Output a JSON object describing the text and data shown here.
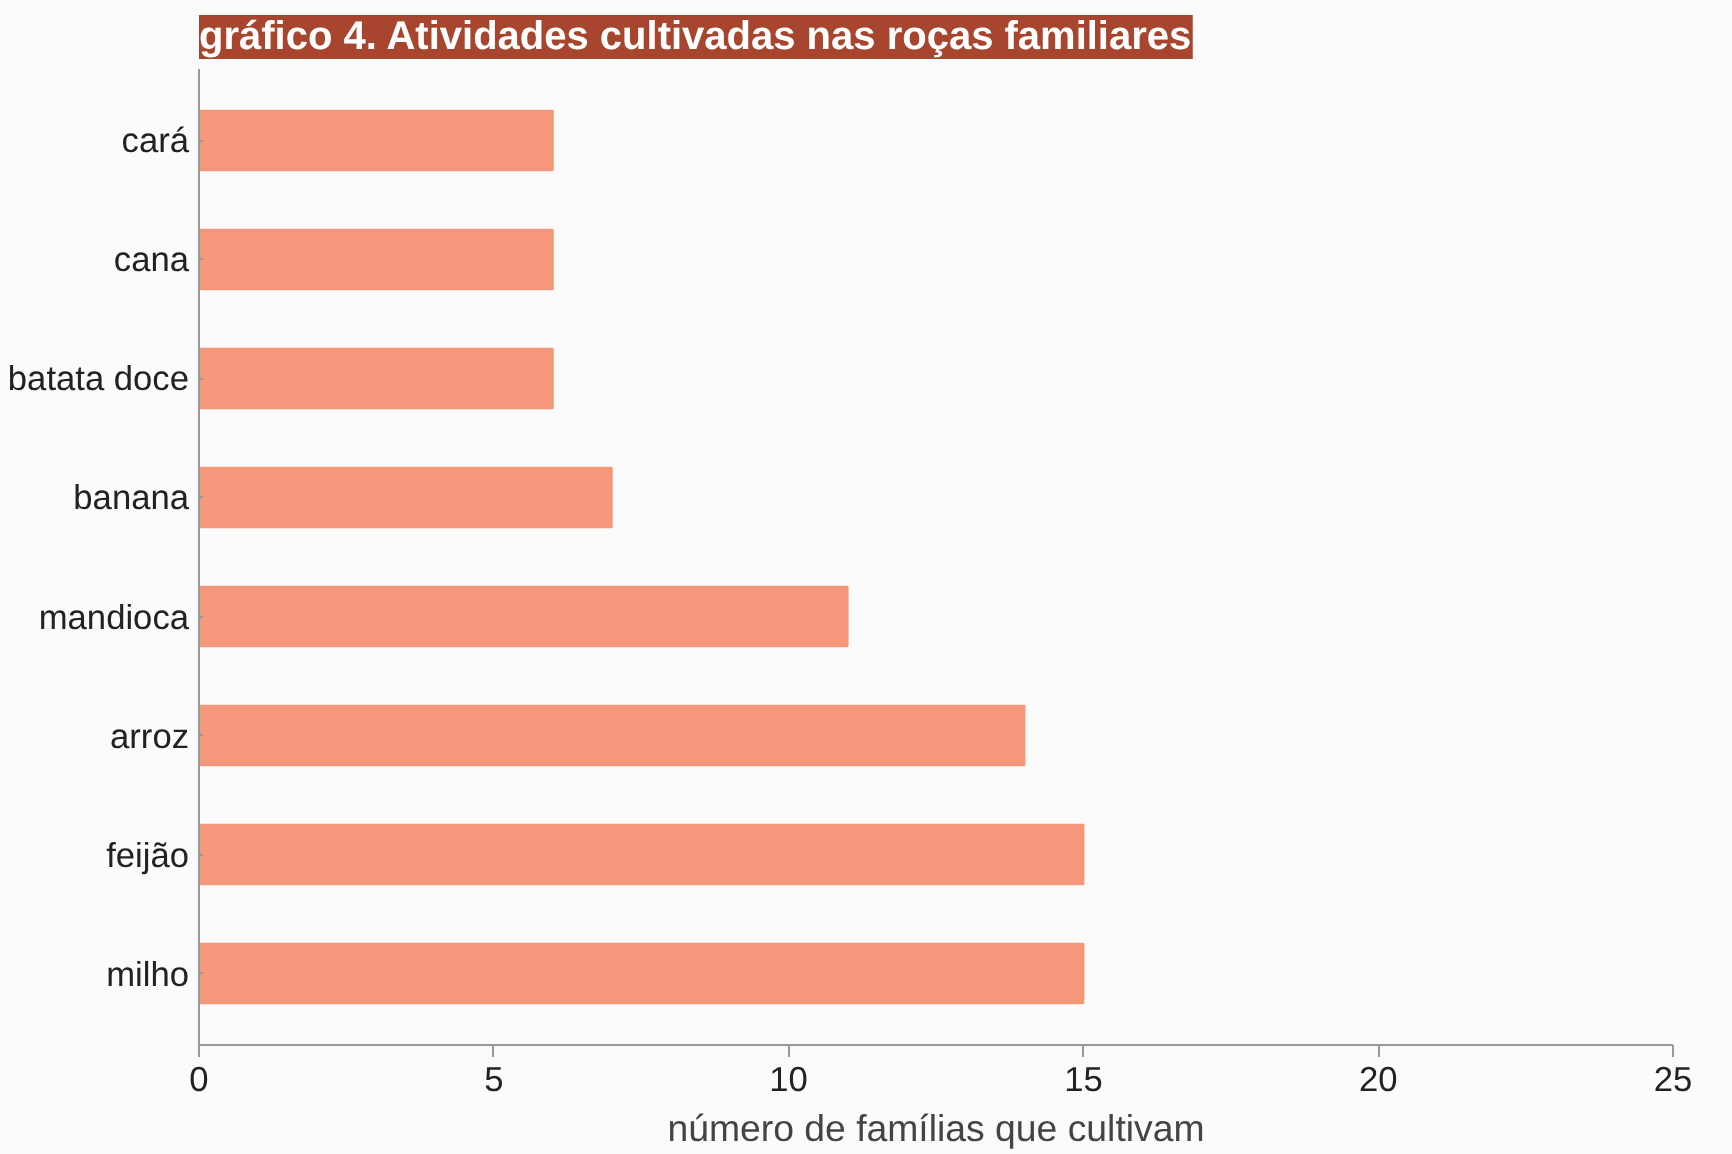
{
  "chart_data": {
    "type": "bar",
    "orientation": "horizontal",
    "title": "gráfico 4. Atividades cultivadas nas roças familiares",
    "categories": [
      "cará",
      "cana",
      "batata doce",
      "banana",
      "mandioca",
      "arroz",
      "feijão",
      "milho"
    ],
    "values": [
      6,
      6,
      6,
      7,
      11,
      14,
      15,
      15
    ],
    "color": "#f4977a",
    "xlim": [
      0,
      25
    ],
    "xticks": [
      0,
      5,
      10,
      15,
      20,
      25
    ],
    "xlabel": "número de famílias que cultivam",
    "grid": false
  }
}
